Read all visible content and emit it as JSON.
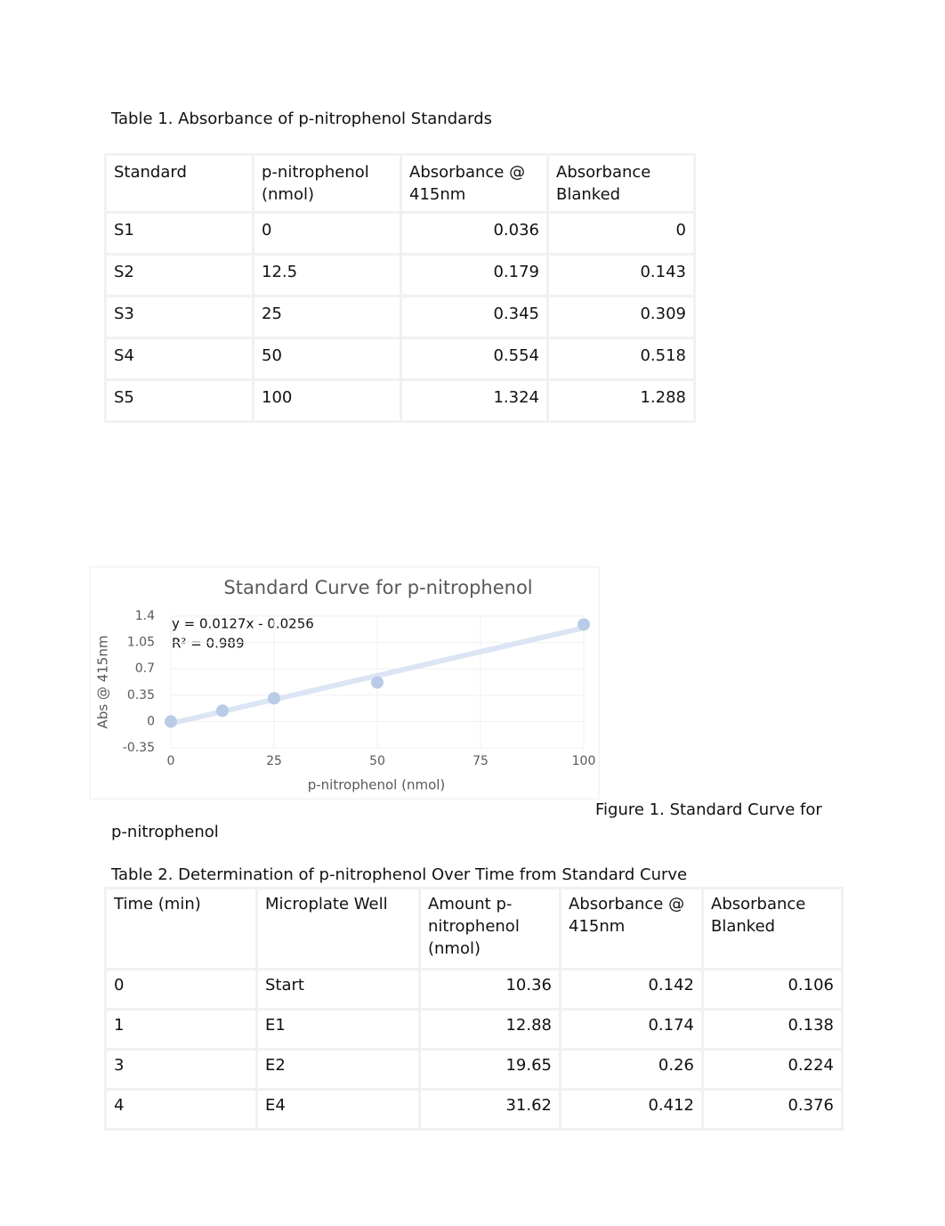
{
  "table1": {
    "caption": "Table 1. Absorbance of p-nitrophenol Standards",
    "header": [
      "Standard",
      "p-nitrophenol (nmol)",
      "Absorbance @ 415nm",
      "Absorbance Blanked"
    ],
    "rows": [
      [
        "S1",
        "0",
        "0.036",
        "0"
      ],
      [
        "S2",
        "12.5",
        "0.179",
        "0.143"
      ],
      [
        "S3",
        "25",
        "0.345",
        "0.309"
      ],
      [
        "S4",
        "50",
        "0.554",
        "0.518"
      ],
      [
        "S5",
        "100",
        "1.324",
        "1.288"
      ]
    ]
  },
  "chart_data": {
    "type": "scatter",
    "title": "Standard Curve for p-nitrophenol",
    "x_label": "p-nitrophenol (nmol)",
    "y_label": "Abs @ 415nm",
    "x": [
      0,
      12.5,
      25,
      50,
      100
    ],
    "values": [
      0,
      0.143,
      0.309,
      0.518,
      1.288
    ],
    "color": "#b9cbe6",
    "xlim": [
      0,
      100
    ],
    "xticks": [
      0,
      25,
      50,
      75,
      100
    ],
    "ylim": [
      -0.35,
      1.4
    ],
    "yticks": [
      -0.35,
      0,
      0.35,
      0.7,
      1.05,
      1.4
    ],
    "grid": true,
    "trendline": {
      "label": "y = 0.0127x - 0.0256",
      "slope": 0.0127,
      "intercept": -0.0256,
      "color": "#dbe5f3"
    },
    "r2_label": "R² = 0.989"
  },
  "figure_caption": [
    "Figure 1. Standard Curve for",
    "p-nitrophenol"
  ],
  "table2": {
    "caption": "Table 2. Determination of p-nitrophenol Over Time from Standard Curve",
    "header": [
      "Time (min)",
      "Microplate Well",
      "Amount p-nitrophenol (nmol)",
      "Absorbance @ 415nm",
      "Absorbance Blanked"
    ],
    "rows": [
      [
        "0",
        "Start",
        "10.36",
        "0.142",
        "0.106"
      ],
      [
        "1",
        "E1",
        "12.88",
        "0.174",
        "0.138"
      ],
      [
        "3",
        "E2",
        "19.65",
        "0.26",
        "0.224"
      ],
      [
        "4",
        "E4",
        "31.62",
        "0.412",
        "0.376"
      ]
    ]
  }
}
